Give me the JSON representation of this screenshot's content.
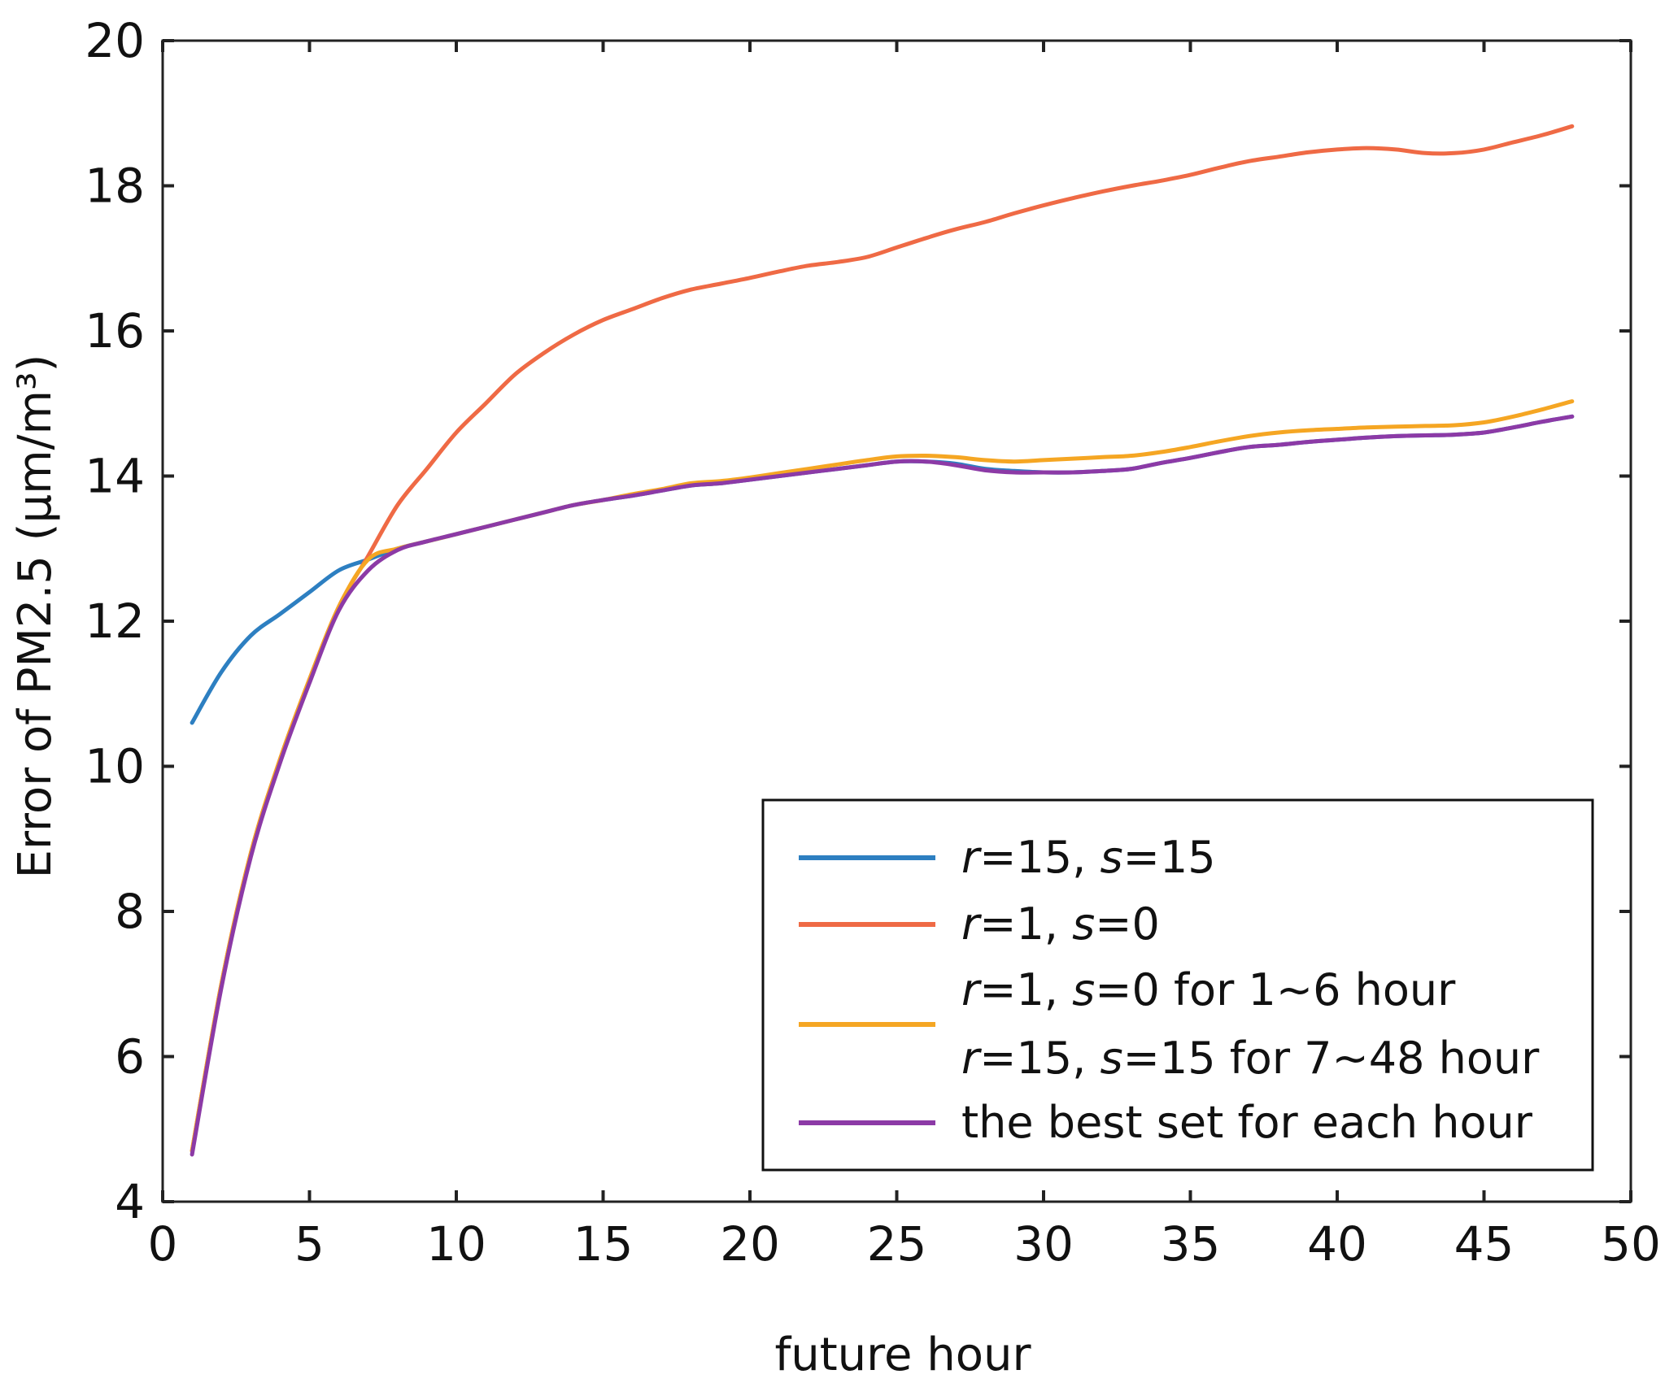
{
  "chart_data": {
    "type": "line",
    "xlabel": "future hour",
    "ylabel": "Error of PM2.5 (μm/m³)",
    "xlim": [
      0,
      50
    ],
    "ylim": [
      4,
      20
    ],
    "xticks": [
      0,
      5,
      10,
      15,
      20,
      25,
      30,
      35,
      40,
      45,
      50
    ],
    "yticks": [
      4,
      6,
      8,
      10,
      12,
      14,
      16,
      18,
      20
    ],
    "x_tick_labels": [
      "0",
      "5",
      "10",
      "15",
      "20",
      "25",
      "30",
      "35",
      "40",
      "45",
      "50"
    ],
    "y_tick_labels": [
      "4",
      "6",
      "8",
      "10",
      "12",
      "14",
      "16",
      "18",
      "20"
    ],
    "grid": false,
    "legend_position": "bottom-right",
    "x": [
      1,
      2,
      3,
      4,
      5,
      6,
      7,
      8,
      9,
      10,
      11,
      12,
      13,
      14,
      15,
      16,
      17,
      18,
      19,
      20,
      21,
      22,
      23,
      24,
      25,
      26,
      27,
      28,
      29,
      30,
      31,
      32,
      33,
      34,
      35,
      36,
      37,
      38,
      39,
      40,
      41,
      42,
      43,
      44,
      45,
      46,
      47,
      48
    ],
    "series": [
      {
        "color": "#2d7fc1",
        "values": [
          10.6,
          11.3,
          11.8,
          12.1,
          12.4,
          12.7,
          12.85,
          13.0,
          13.1,
          13.2,
          13.3,
          13.4,
          13.5,
          13.6,
          13.67,
          13.73,
          13.8,
          13.87,
          13.9,
          13.95,
          14.0,
          14.05,
          14.1,
          14.15,
          14.2,
          14.2,
          14.17,
          14.1,
          14.07,
          14.05,
          14.05,
          14.07,
          14.1,
          14.18,
          14.25,
          14.33,
          14.4,
          14.43,
          14.47,
          14.5,
          14.53,
          14.55,
          14.56,
          14.57,
          14.6,
          14.67,
          14.75,
          14.82
        ]
      },
      {
        "color": "#ef6a45",
        "values": [
          4.7,
          7.0,
          8.8,
          10.1,
          11.2,
          12.2,
          12.9,
          13.6,
          14.1,
          14.6,
          15.0,
          15.4,
          15.7,
          15.95,
          16.15,
          16.3,
          16.45,
          16.57,
          16.65,
          16.73,
          16.82,
          16.9,
          16.95,
          17.02,
          17.15,
          17.28,
          17.4,
          17.5,
          17.62,
          17.73,
          17.83,
          17.92,
          18.0,
          18.07,
          18.15,
          18.25,
          18.34,
          18.4,
          18.46,
          18.5,
          18.52,
          18.5,
          18.45,
          18.45,
          18.5,
          18.6,
          18.7,
          18.82
        ]
      },
      {
        "color": "#f5a623",
        "values": [
          4.7,
          7.0,
          8.8,
          10.1,
          11.2,
          12.2,
          12.85,
          13.0,
          13.1,
          13.2,
          13.3,
          13.4,
          13.5,
          13.6,
          13.67,
          13.75,
          13.82,
          13.9,
          13.93,
          13.98,
          14.04,
          14.1,
          14.16,
          14.22,
          14.27,
          14.28,
          14.26,
          14.22,
          14.2,
          14.22,
          14.24,
          14.26,
          14.28,
          14.33,
          14.4,
          14.48,
          14.55,
          14.6,
          14.63,
          14.65,
          14.67,
          14.68,
          14.69,
          14.7,
          14.74,
          14.82,
          14.92,
          15.03
        ]
      },
      {
        "color": "#8c3aa6",
        "values": [
          4.65,
          6.95,
          8.75,
          10.05,
          11.15,
          12.15,
          12.7,
          12.98,
          13.1,
          13.2,
          13.3,
          13.4,
          13.5,
          13.6,
          13.67,
          13.73,
          13.8,
          13.87,
          13.9,
          13.95,
          14.0,
          14.05,
          14.1,
          14.15,
          14.2,
          14.2,
          14.15,
          14.08,
          14.05,
          14.05,
          14.05,
          14.07,
          14.1,
          14.18,
          14.25,
          14.33,
          14.4,
          14.43,
          14.47,
          14.5,
          14.53,
          14.55,
          14.56,
          14.57,
          14.6,
          14.67,
          14.75,
          14.82
        ]
      }
    ],
    "legend": [
      {
        "color": "#2d7fc1",
        "parts": [
          [
            "r",
            true
          ],
          [
            "=15, ",
            false
          ],
          [
            "s",
            true
          ],
          [
            "=15",
            false
          ]
        ]
      },
      {
        "color": "#ef6a45",
        "parts": [
          [
            "r",
            true
          ],
          [
            "=1, ",
            false
          ],
          [
            "s",
            true
          ],
          [
            "=0",
            false
          ]
        ]
      },
      {
        "color": "#f5a623",
        "lines": [
          [
            [
              "r",
              true
            ],
            [
              "=1, ",
              false
            ],
            [
              "s",
              true
            ],
            [
              "=0 for 1~6 hour",
              false
            ]
          ],
          [
            [
              "r",
              true
            ],
            [
              "=15, ",
              false
            ],
            [
              "s",
              true
            ],
            [
              "=15 for 7~48 hour",
              false
            ]
          ]
        ]
      },
      {
        "color": "#8c3aa6",
        "parts": [
          [
            "the best set for each hour",
            false
          ]
        ]
      }
    ]
  }
}
